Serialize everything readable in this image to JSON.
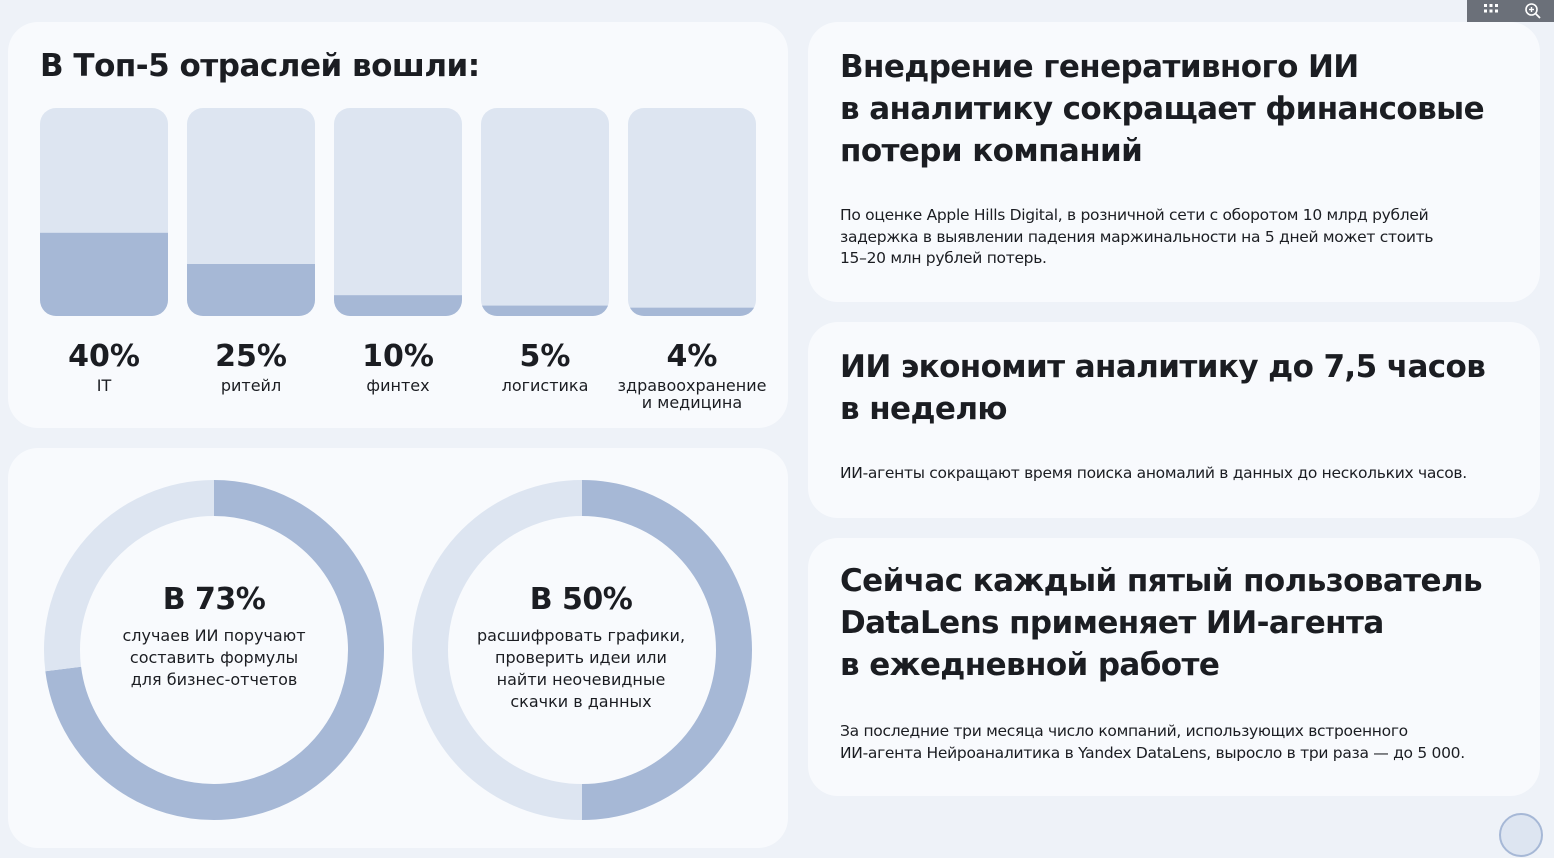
{
  "industries_card": {
    "title": "В Топ-5 отраслей вошли:"
  },
  "chart_data": [
    {
      "type": "bar",
      "title": "В Топ-5 отраслей вошли:",
      "unit": "%",
      "ylim": [
        0,
        100
      ],
      "categories": [
        {
          "label": "IT",
          "label_line2": "",
          "value": 40,
          "value_label": "40%"
        },
        {
          "label": "ритейл",
          "label_line2": "",
          "value": 25,
          "value_label": "25%"
        },
        {
          "label": "финтех",
          "label_line2": "",
          "value": 10,
          "value_label": "10%"
        },
        {
          "label": "логистика",
          "label_line2": "",
          "value": 5,
          "value_label": "5%"
        },
        {
          "label": "здравоохранение",
          "label_line2": "и медицина",
          "value": 4,
          "value_label": "4%"
        }
      ],
      "colors": {
        "track": "#dde5f1",
        "fill": "#a6b8d6"
      }
    },
    {
      "type": "pie",
      "variant": "donut",
      "slices": [
        {
          "value": 73,
          "color": "#a6b8d6"
        },
        {
          "value": 27,
          "color": "#dde5f1"
        }
      ],
      "value_label": "В 73%",
      "description": [
        "случаев ИИ поручают",
        "составить формулы",
        "для бизнес-отчетов"
      ]
    },
    {
      "type": "pie",
      "variant": "donut",
      "slices": [
        {
          "value": 50,
          "color": "#a6b8d6"
        },
        {
          "value": 50,
          "color": "#dde5f1"
        }
      ],
      "value_label": "В 50%",
      "description": [
        "расшифровать графики,",
        "проверить идеи или",
        "найти неочевидные",
        "скачки в данных"
      ]
    }
  ],
  "info_cards": [
    {
      "title": [
        "Внедрение генеративного ИИ",
        "в аналитику сокращает финансовые",
        "потери компаний"
      ],
      "text": [
        "По оценке Apple Hills Digital, в розничной сети с оборотом 10 млрд рублей",
        "задержка в выявлении падения маржинальности на 5 дней может стоить",
        "15–20 млн рублей потерь."
      ]
    },
    {
      "title": [
        "ИИ экономит аналитику до 7,5 часов",
        "в неделю"
      ],
      "text": [
        "ИИ-агенты сокращают время поиска аномалий в данных до нескольких часов."
      ]
    },
    {
      "title": [
        "Сейчас каждый пятый пользователь",
        "DataLens применяет ИИ-агента",
        "в ежедневной работе"
      ],
      "text": [
        "За последние три месяца число компаний, использующих встроенного",
        "ИИ-агента Нейроаналитика в Yandex DataLens, выросло в три раза — до 5 000."
      ]
    }
  ],
  "toolbar": {
    "icons": [
      "grid-icon",
      "zoom-icon"
    ]
  },
  "colors": {
    "background": "#eef2f8",
    "card": "#f8fafd",
    "text": "#1b1d22",
    "accent": "#a6b8d6",
    "track": "#dde5f1"
  }
}
